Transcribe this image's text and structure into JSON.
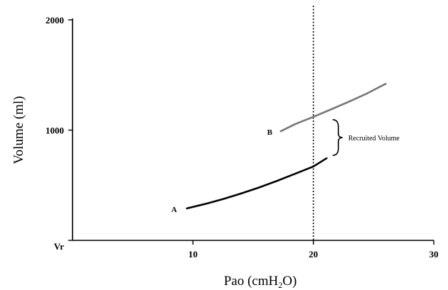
{
  "chart_data": {
    "type": "line",
    "xlabel": "Pao (cmH",
    "xlabel_sub": "2",
    "xlabel_end": "O)",
    "ylabel": "Volume (ml)",
    "xlim": [
      0,
      30
    ],
    "ylim": [
      0,
      2000
    ],
    "x_ticks": [
      {
        "value": 10,
        "label": "10"
      },
      {
        "value": 20,
        "label": "20"
      },
      {
        "value": 30,
        "label": "30"
      }
    ],
    "y_ticks": [
      {
        "value": 0,
        "label": "Vr"
      },
      {
        "value": 1000,
        "label": "1000"
      },
      {
        "value": 2000,
        "label": "2000"
      }
    ],
    "series": [
      {
        "name": "A",
        "color": "#000000",
        "x": [
          9.5,
          11,
          12.5,
          14,
          15.5,
          17,
          18.5,
          20,
          21.1
        ],
        "y": [
          290,
          330,
          375,
          425,
          480,
          540,
          605,
          670,
          745
        ]
      },
      {
        "name": "B",
        "color": "#777777",
        "x": [
          17.3,
          18.5,
          20,
          21.5,
          23,
          24.5,
          26
        ],
        "y": [
          990,
          1055,
          1120,
          1190,
          1260,
          1335,
          1420
        ]
      }
    ],
    "vline": {
      "x": 20,
      "style": "dotted"
    },
    "annotation": {
      "text": "Recruited Volume",
      "x": 21.6,
      "y_from": 745,
      "y_to": 1120
    },
    "grid": false,
    "legend": "none"
  }
}
